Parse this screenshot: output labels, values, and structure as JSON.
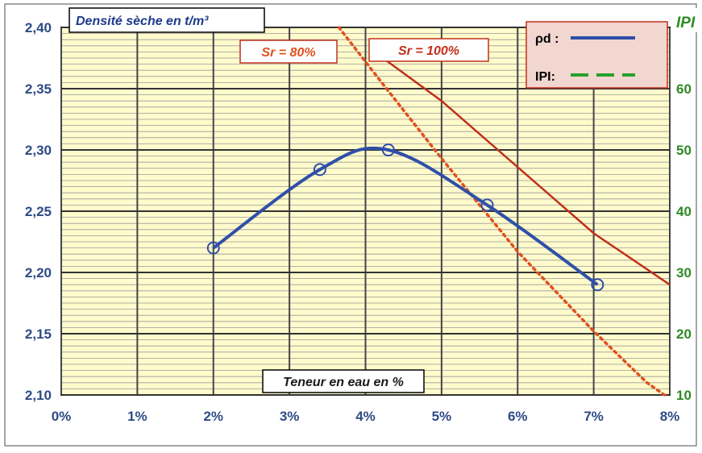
{
  "chart_data": {
    "type": "line",
    "title": "",
    "ylabel": "Densité sèche en t/m³",
    "ylabel_right": "IPI",
    "xlabel": "Teneur en eau en %",
    "xlim": [
      0,
      8
    ],
    "ylim": [
      2.1,
      2.4
    ],
    "ylim_right": [
      10,
      70
    ],
    "x_ticks": [
      "0%",
      "1%",
      "2%",
      "3%",
      "4%",
      "5%",
      "6%",
      "7%",
      "8%"
    ],
    "y_ticks": [
      "2,10",
      "2,15",
      "2,20",
      "2,25",
      "2,30",
      "2,35",
      "2,40"
    ],
    "y_ticks_right": [
      "10",
      "20",
      "30",
      "40",
      "50",
      "60"
    ],
    "grid": true,
    "legend_position": "top-right",
    "legend": {
      "rho_label": "ρd :",
      "ipi_label": "IPI:"
    },
    "colors": {
      "rho": "#2f4fa8",
      "ipi": "#27a02c",
      "sr80": "#e0501e",
      "sr100": "#c0301a",
      "left_axis": "#2e4a86",
      "right_axis": "#2e8b24",
      "plot_bg": "#fffbcc"
    },
    "series": [
      {
        "name": "ρd",
        "points": [
          [
            2.0,
            2.22
          ],
          [
            3.4,
            2.284
          ],
          [
            4.3,
            2.3
          ],
          [
            5.6,
            2.255
          ],
          [
            7.05,
            2.19
          ]
        ]
      },
      {
        "name": "Sr = 80%",
        "style": "dotted",
        "points": [
          [
            3.65,
            2.4
          ],
          [
            4.2,
            2.356
          ],
          [
            5.0,
            2.293
          ],
          [
            6.0,
            2.217
          ],
          [
            7.0,
            2.152
          ],
          [
            7.7,
            2.11
          ],
          [
            7.93,
            2.1
          ]
        ]
      },
      {
        "name": "Sr = 100%",
        "style": "solid",
        "points": [
          [
            4.25,
            2.374
          ],
          [
            5.0,
            2.34
          ],
          [
            6.0,
            2.286
          ],
          [
            7.0,
            2.232
          ],
          [
            8.0,
            2.19
          ]
        ]
      }
    ],
    "annotations": {
      "sr80": "Sr = 80%",
      "sr100": "Sr = 100%"
    }
  }
}
